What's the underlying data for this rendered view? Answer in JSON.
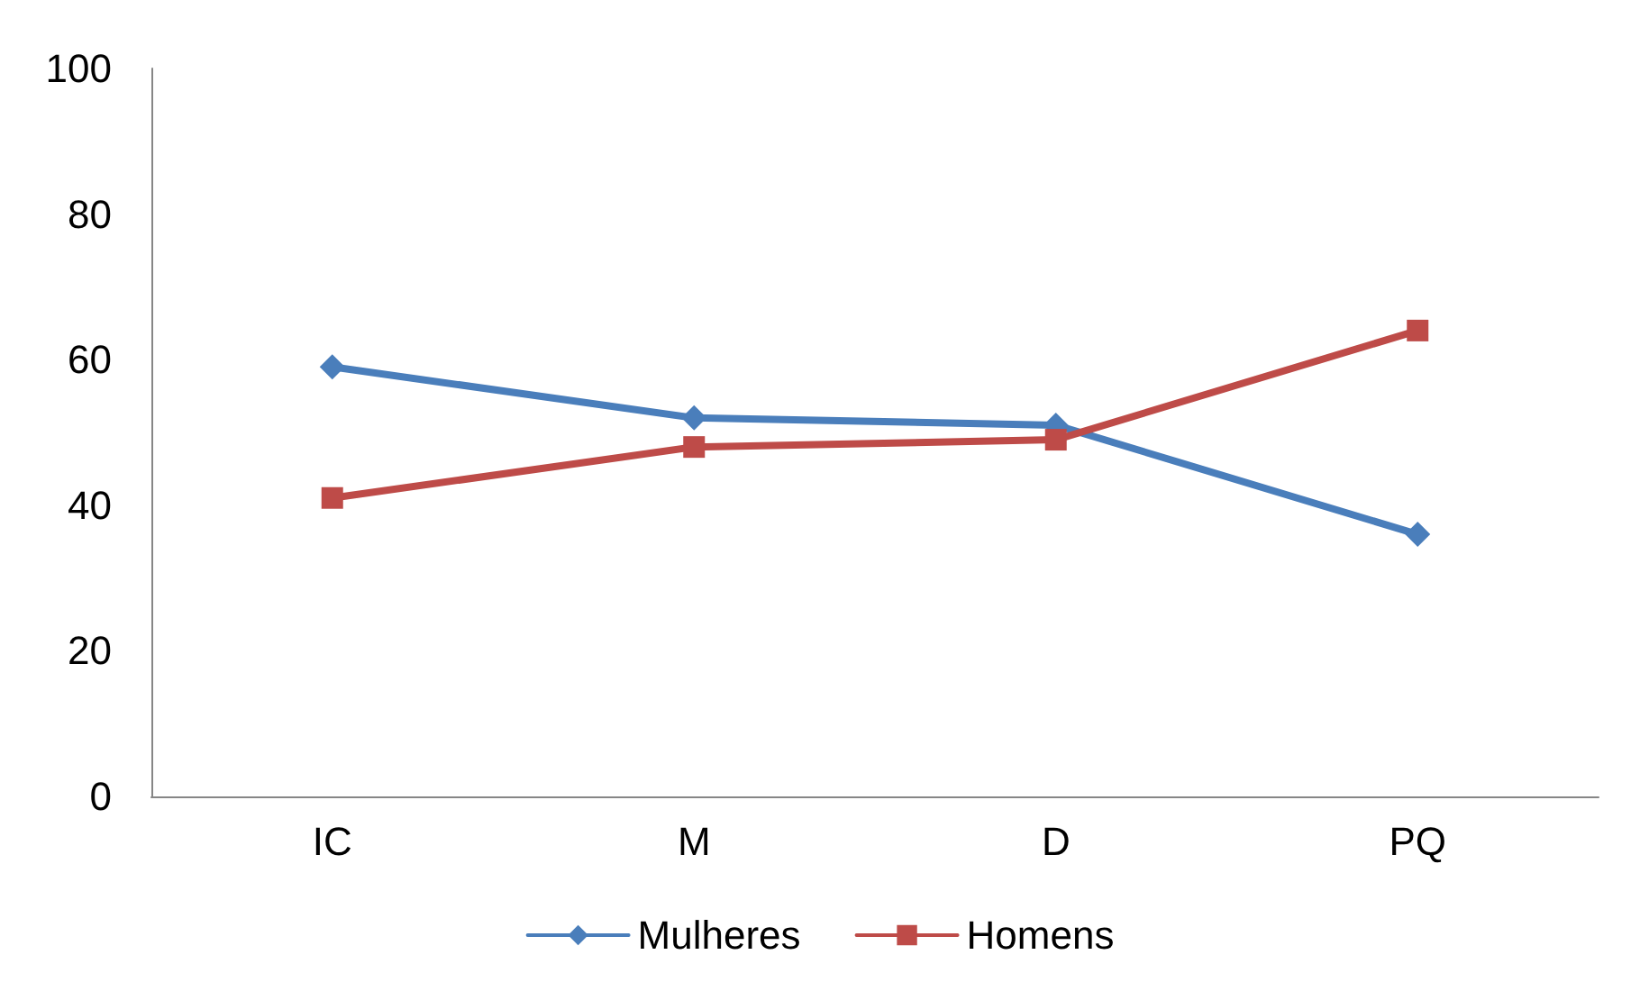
{
  "chart_data": {
    "type": "line",
    "categories": [
      "IC",
      "M",
      "D",
      "PQ"
    ],
    "series": [
      {
        "name": "Mulheres",
        "color": "#4a7ebb",
        "values": [
          59,
          52,
          51,
          36
        ],
        "marker": "diamond"
      },
      {
        "name": "Homens",
        "color": "#be4b48",
        "values": [
          41,
          48,
          49,
          64
        ],
        "marker": "square"
      }
    ],
    "ylim": [
      0,
      100
    ],
    "yticks": [
      0,
      20,
      40,
      60,
      80,
      100
    ],
    "grid": false,
    "legend": "bottom",
    "line_style": "solid"
  }
}
